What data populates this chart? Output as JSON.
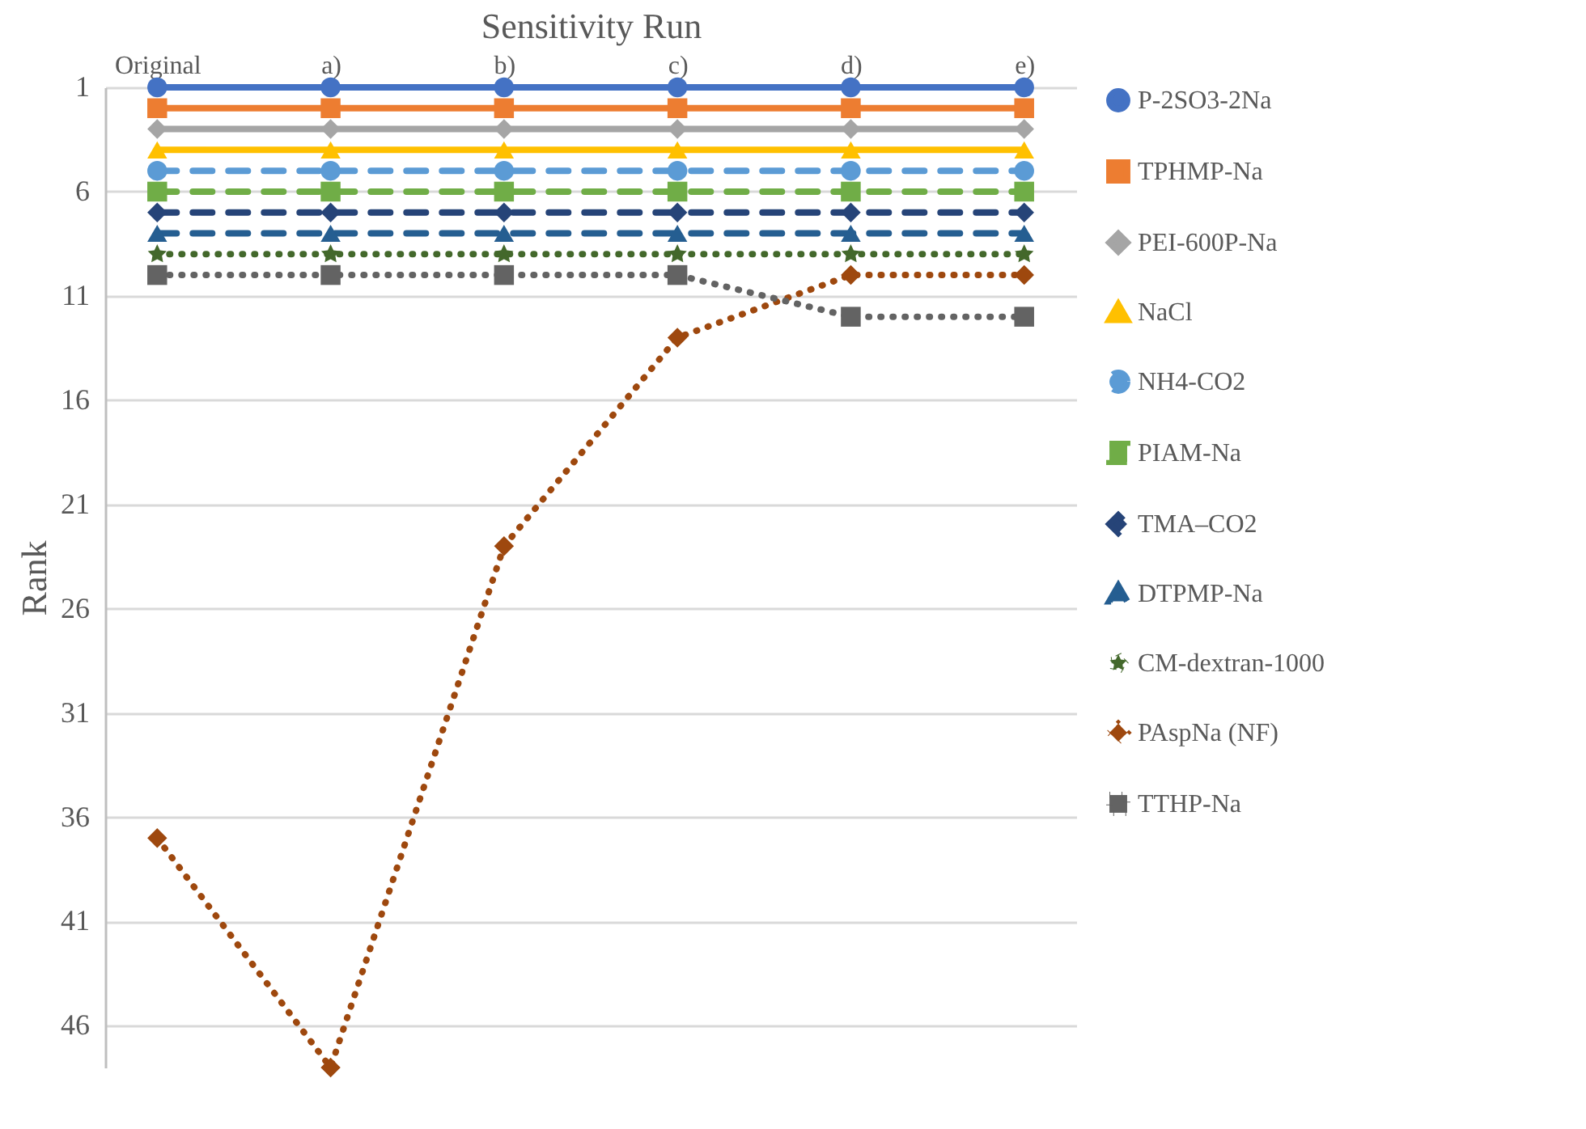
{
  "chart_data": {
    "type": "line",
    "xlabel": "Sensitivity Run",
    "ylabel": "Rank",
    "categories": [
      "Original",
      "a)",
      "b)",
      "c)",
      "d)",
      "e)"
    ],
    "ylim": [
      48,
      1
    ],
    "yticks": [
      1,
      6,
      11,
      16,
      21,
      26,
      31,
      36,
      41,
      46
    ],
    "grid": "y",
    "legend": "right",
    "series": [
      {
        "name": "P-2SO3-2Na",
        "color": "#4472c4",
        "marker": "circle",
        "line_style": "solid",
        "values": [
          1,
          1,
          1,
          1,
          1,
          1
        ]
      },
      {
        "name": "TPHMP-Na",
        "color": "#ed7d31",
        "marker": "square",
        "line_style": "solid",
        "values": [
          2,
          2,
          2,
          2,
          2,
          2
        ]
      },
      {
        "name": "PEI-600P-Na",
        "color": "#a5a5a5",
        "marker": "diamond",
        "line_style": "solid",
        "values": [
          3,
          3,
          3,
          3,
          3,
          3
        ]
      },
      {
        "name": "NaCl",
        "color": "#ffc000",
        "marker": "triangle",
        "line_style": "solid",
        "values": [
          4,
          4,
          4,
          4,
          4,
          4
        ]
      },
      {
        "name": "NH4-CO2",
        "color": "#5b9bd5",
        "marker": "circle",
        "line_style": "dashed",
        "values": [
          5,
          5,
          5,
          5,
          5,
          5
        ]
      },
      {
        "name": "PIAM-Na",
        "color": "#70ad47",
        "marker": "square",
        "line_style": "dashed",
        "values": [
          6,
          6,
          6,
          6,
          6,
          6
        ]
      },
      {
        "name": "TMA–CO2",
        "color": "#264478",
        "marker": "diamond",
        "line_style": "dashed",
        "values": [
          7,
          7,
          7,
          7,
          7,
          7
        ]
      },
      {
        "name": "DTPMP-Na",
        "color": "#255e91",
        "marker": "triangle",
        "line_style": "dashed",
        "values": [
          8,
          8,
          8,
          8,
          8,
          8
        ]
      },
      {
        "name": "CM-dextran-1000",
        "color": "#43682b",
        "marker": "star",
        "line_style": "dotted",
        "values": [
          9,
          9,
          9,
          9,
          9,
          9
        ]
      },
      {
        "name": "PAspNa (NF)",
        "color": "#9e480e",
        "marker": "diamond",
        "line_style": "dotted",
        "values": [
          37,
          48,
          23,
          13,
          10,
          10
        ]
      },
      {
        "name": "TTHP-Na",
        "color": "#636363",
        "marker": "square",
        "line_style": "dotted",
        "values": [
          10,
          10,
          10,
          10,
          12,
          12
        ]
      }
    ]
  }
}
